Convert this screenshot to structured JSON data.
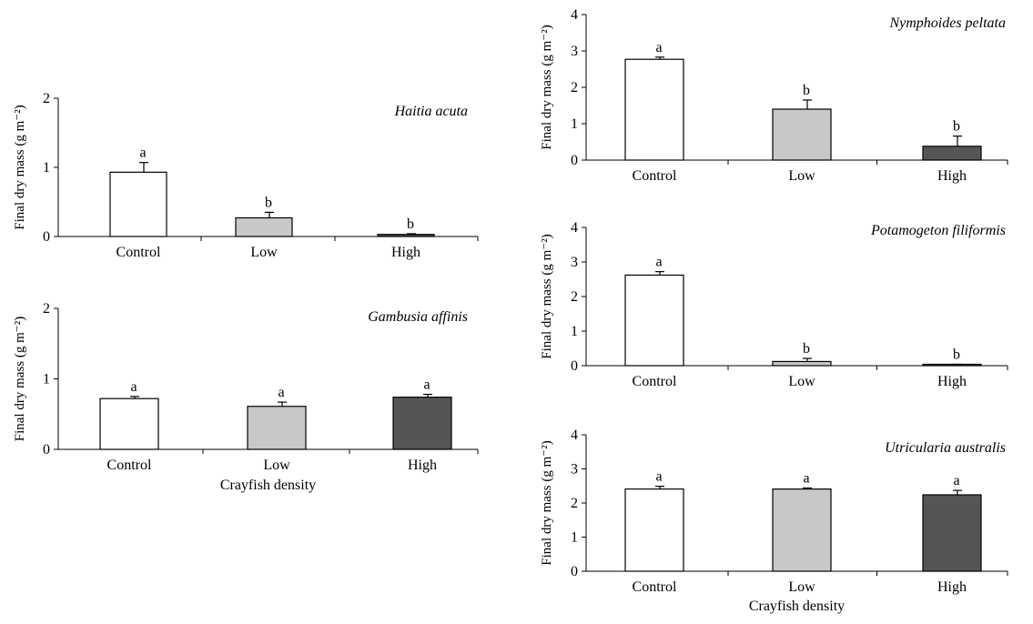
{
  "chart_data": [
    {
      "type": "bar",
      "title": "Haitia acuta",
      "ylabel": "Final dry mass (g m⁻²)",
      "xlabel": "",
      "categories": [
        "Control",
        "Low",
        "High"
      ],
      "values": [
        0.93,
        0.27,
        0.03
      ],
      "errors": [
        0.14,
        0.08,
        0.01
      ],
      "significance": [
        "a",
        "b",
        "b"
      ],
      "ylim": [
        0,
        2
      ],
      "yticks": [
        "0",
        "1",
        "2"
      ]
    },
    {
      "type": "bar",
      "title": "Gambusia affinis",
      "ylabel": "Final dry mass (g m⁻²)",
      "xlabel": "Crayfish density",
      "categories": [
        "Control",
        "Low",
        "High"
      ],
      "values": [
        0.72,
        0.61,
        0.74
      ],
      "errors": [
        0.03,
        0.06,
        0.04
      ],
      "significance": [
        "a",
        "a",
        "a"
      ],
      "ylim": [
        0,
        2
      ],
      "yticks": [
        "0",
        "1",
        "2"
      ]
    },
    {
      "type": "bar",
      "title": "Nymphoides peltata",
      "ylabel": "Final dry mass (g m⁻²)",
      "xlabel": "",
      "categories": [
        "Control",
        "Low",
        "High"
      ],
      "values": [
        2.77,
        1.4,
        0.38
      ],
      "errors": [
        0.06,
        0.25,
        0.28
      ],
      "significance": [
        "a",
        "b",
        "b"
      ],
      "ylim": [
        0,
        4
      ],
      "yticks": [
        "0",
        "1",
        "2",
        "3",
        "4"
      ]
    },
    {
      "type": "bar",
      "title": "Potamogeton filiformis",
      "ylabel": "Final dry mass (g m⁻²)",
      "xlabel": "",
      "categories": [
        "Control",
        "Low",
        "High"
      ],
      "values": [
        2.62,
        0.12,
        0.03
      ],
      "errors": [
        0.1,
        0.09,
        0.01
      ],
      "significance": [
        "a",
        "b",
        "b"
      ],
      "ylim": [
        0,
        4
      ],
      "yticks": [
        "0",
        "1",
        "2",
        "3",
        "4"
      ]
    },
    {
      "type": "bar",
      "title": "Utricularia australis",
      "ylabel": "Final dry mass (g m⁻²)",
      "xlabel": "Crayfish density",
      "categories": [
        "Control",
        "Low",
        "High"
      ],
      "values": [
        2.41,
        2.41,
        2.24
      ],
      "errors": [
        0.08,
        0.03,
        0.13
      ],
      "significance": [
        "a",
        "a",
        "a"
      ],
      "ylim": [
        0,
        4
      ],
      "yticks": [
        "0",
        "1",
        "2",
        "3",
        "4"
      ]
    }
  ],
  "style": {
    "bar_fills": [
      "#ffffff",
      "#c8c8c8",
      "#555555"
    ],
    "stroke": "#000000"
  }
}
